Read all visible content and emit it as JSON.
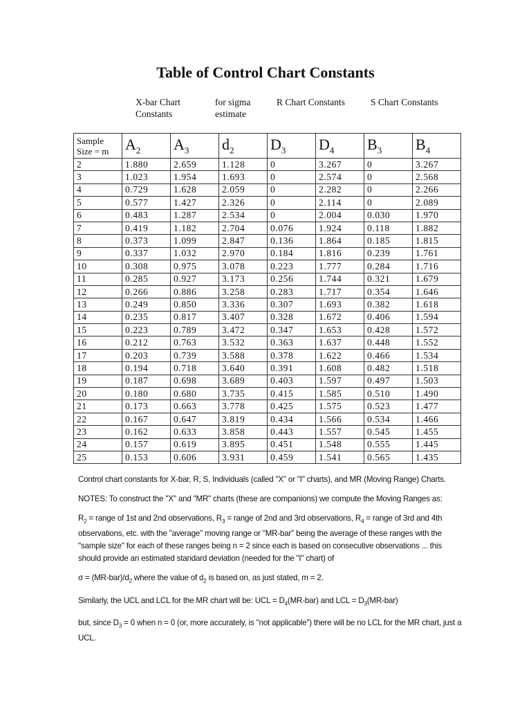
{
  "title": "Table of Control Chart Constants",
  "column_groups": [
    {
      "line1": "X-bar Chart",
      "line2": "Constants"
    },
    {
      "line1": "for sigma",
      "line2": "estimate"
    },
    {
      "line1": "R Chart Constants",
      "line2": ""
    },
    {
      "line1": "S Chart Constants",
      "line2": ""
    }
  ],
  "table": {
    "first_header": {
      "line1": "Sample",
      "line2": "Size = m"
    },
    "headers": [
      {
        "base": "A",
        "sub": "2"
      },
      {
        "base": "A",
        "sub": "3"
      },
      {
        "base": "d",
        "sub": "2"
      },
      {
        "base": "D",
        "sub": "3"
      },
      {
        "base": "D",
        "sub": "4"
      },
      {
        "base": "B",
        "sub": "3"
      },
      {
        "base": "B",
        "sub": "4"
      }
    ],
    "rows": [
      [
        "2",
        "1.880",
        "2.659",
        "1.128",
        "0",
        "3.267",
        "0",
        "3.267"
      ],
      [
        "3",
        "1.023",
        "1.954",
        "1.693",
        "0",
        "2.574",
        "0",
        "2.568"
      ],
      [
        "4",
        "0.729",
        "1.628",
        "2.059",
        "0",
        "2.282",
        "0",
        "2.266"
      ],
      [
        "5",
        "0.577",
        "1.427",
        "2.326",
        "0",
        "2.114",
        "0",
        "2.089"
      ],
      [
        "6",
        "0.483",
        "1.287",
        "2.534",
        "0",
        "2.004",
        "0.030",
        "1.970"
      ],
      [
        "7",
        "0.419",
        "1.182",
        "2.704",
        "0.076",
        "1.924",
        "0.118",
        "1.882"
      ],
      [
        "8",
        "0.373",
        "1.099",
        "2.847",
        "0.136",
        "1.864",
        "0.185",
        "1.815"
      ],
      [
        "9",
        "0.337",
        "1.032",
        "2.970",
        "0.184",
        "1.816",
        "0.239",
        "1.761"
      ],
      [
        "10",
        "0.308",
        "0.975",
        "3.078",
        "0.223",
        "1.777",
        "0.284",
        "1.716"
      ],
      [
        "11",
        "0.285",
        "0.927",
        "3.173",
        "0.256",
        "1.744",
        "0.321",
        "1.679"
      ],
      [
        "12",
        "0.266",
        "0.886",
        "3.258",
        "0.283",
        "1.717",
        "0.354",
        "1.646"
      ],
      [
        "13",
        "0.249",
        "0.850",
        "3.336",
        "0.307",
        "1.693",
        "0.382",
        "1.618"
      ],
      [
        "14",
        "0.235",
        "0.817",
        "3.407",
        "0.328",
        "1.672",
        "0.406",
        "1.594"
      ],
      [
        "15",
        "0.223",
        "0.789",
        "3.472",
        "0.347",
        "1.653",
        "0.428",
        "1.572"
      ],
      [
        "16",
        "0.212",
        "0.763",
        "3.532",
        "0.363",
        "1.637",
        "0.448",
        "1.552"
      ],
      [
        "17",
        "0.203",
        "0.739",
        "3.588",
        "0.378",
        "1.622",
        "0.466",
        "1.534"
      ],
      [
        "18",
        "0.194",
        "0.718",
        "3.640",
        "0.391",
        "1.608",
        "0.482",
        "1.518"
      ],
      [
        "19",
        "0.187",
        "0.698",
        "3.689",
        "0.403",
        "1.597",
        "0.497",
        "1.503"
      ],
      [
        "20",
        "0.180",
        "0.680",
        "3.735",
        "0.415",
        "1.585",
        "0.510",
        "1.490"
      ],
      [
        "21",
        "0.173",
        "0.663",
        "3.778",
        "0.425",
        "1.575",
        "0.523",
        "1.477"
      ],
      [
        "22",
        "0.167",
        "0.647",
        "3.819",
        "0.434",
        "1.566",
        "0.534",
        "1.466"
      ],
      [
        "23",
        "0.162",
        "0.633",
        "3.858",
        "0.443",
        "1.557",
        "0.545",
        "1.455"
      ],
      [
        "24",
        "0.157",
        "0.619",
        "3.895",
        "0.451",
        "1.548",
        "0.555",
        "1.445"
      ],
      [
        "25",
        "0.153",
        "0.606",
        "3.931",
        "0.459",
        "1.541",
        "0.565",
        "1.435"
      ]
    ]
  },
  "notes": [
    [
      {
        "t": "Control chart constants for X-bar, R, S, Individuals (called \"X\" or \"I\" charts), and MR (Moving Range) Charts."
      }
    ],
    [
      {
        "t": "NOTES: To construct the \"X\" and \"MR\" charts (these are companions) we compute the Moving Ranges as:"
      }
    ],
    [
      {
        "t": "R"
      },
      {
        "sub": "2"
      },
      {
        "t": " = range of 1st and 2nd observations, R"
      },
      {
        "sub": "3"
      },
      {
        "t": " = range of 2nd and 3rd observations, R"
      },
      {
        "sub": "4"
      },
      {
        "t": " = range of 3rd and 4th observations, etc. with the \"average\" moving range or \"MR-bar\" being the average of these ranges with the \"sample size\" for each of these ranges being n = 2 since each is based on consecutive observations ... this should provide an estimated standard deviation (needed for the \"I\" chart) of"
      }
    ],
    [
      {
        "t": "σ = (MR-bar)/d"
      },
      {
        "sub": "2"
      },
      {
        "t": "  where the value of d"
      },
      {
        "sub": "2"
      },
      {
        "t": " is based on, as just stated, m = 2."
      }
    ],
    [
      {
        "t": "Similarly, the UCL and LCL for the MR chart will be:   UCL = D"
      },
      {
        "sub": "4"
      },
      {
        "t": "(MR-bar)     and     LCL = D"
      },
      {
        "sub": "3"
      },
      {
        "t": "(MR-bar)"
      }
    ],
    [
      {
        "t": "but, since D"
      },
      {
        "sub": "3"
      },
      {
        "t": " = 0 when n = 0 (or, more accurately, is \"not applicable\") there will be no LCL for the MR chart, just a UCL."
      }
    ]
  ]
}
